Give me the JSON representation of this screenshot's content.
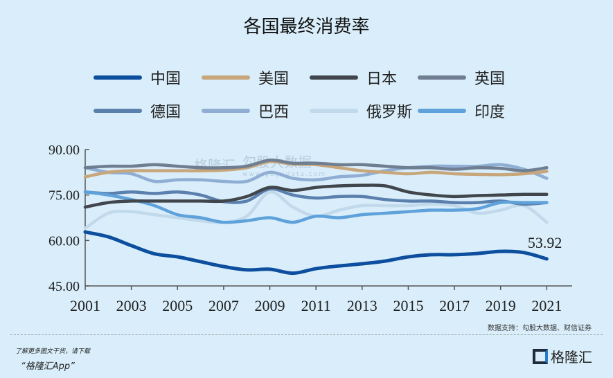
{
  "chart_data": {
    "type": "line",
    "title": "各国最终消费率",
    "x": [
      2001,
      2002,
      2003,
      2004,
      2005,
      2006,
      2007,
      2008,
      2009,
      2010,
      2011,
      2012,
      2013,
      2014,
      2015,
      2016,
      2017,
      2018,
      2019,
      2020,
      2021
    ],
    "xticks": [
      "2001",
      "2003",
      "2005",
      "2007",
      "2009",
      "2011",
      "2013",
      "2015",
      "2017",
      "2019",
      "2021"
    ],
    "yticks": [
      "45.00",
      "60.00",
      "75.00",
      "90.00"
    ],
    "ylim": [
      45,
      90
    ],
    "grid": false,
    "legend_position": "top",
    "series": [
      {
        "name": "中国",
        "color": "#0d4e9e",
        "values": [
          62.8,
          61.2,
          58.3,
          55.6,
          54.6,
          53.0,
          51.4,
          50.3,
          50.5,
          49.2,
          50.7,
          51.6,
          52.3,
          53.2,
          54.6,
          55.3,
          55.3,
          55.7,
          56.4,
          56.0,
          53.92
        ]
      },
      {
        "name": "美国",
        "color": "#c8a67c",
        "values": [
          81.0,
          82.5,
          83.0,
          83.0,
          83.0,
          83.0,
          83.2,
          84.0,
          86.0,
          85.2,
          85.0,
          84.0,
          83.0,
          82.5,
          82.0,
          82.5,
          82.0,
          81.8,
          81.7,
          82.0,
          82.8
        ]
      },
      {
        "name": "日本",
        "color": "#41464c",
        "values": [
          71.0,
          72.5,
          73.0,
          73.0,
          73.0,
          73.0,
          73.0,
          74.5,
          77.5,
          76.5,
          77.5,
          78.0,
          78.2,
          78.0,
          76.0,
          75.0,
          74.5,
          74.8,
          75.0,
          75.2,
          75.2
        ]
      },
      {
        "name": "英国",
        "color": "#6f7e90",
        "values": [
          84.0,
          84.5,
          84.5,
          85.0,
          84.5,
          84.0,
          84.0,
          84.5,
          86.5,
          85.5,
          85.5,
          85.0,
          85.0,
          84.5,
          84.0,
          84.0,
          83.5,
          84.0,
          83.8,
          83.0,
          84.0
        ]
      },
      {
        "name": "德国",
        "color": "#5b80ae",
        "values": [
          76.0,
          75.5,
          76.0,
          75.5,
          76.0,
          75.0,
          72.8,
          73.0,
          77.0,
          75.0,
          74.0,
          74.5,
          74.5,
          73.5,
          73.0,
          73.0,
          72.5,
          72.5,
          73.0,
          72.0,
          72.5
        ]
      },
      {
        "name": "巴西",
        "color": "#90aed4",
        "values": [
          84.0,
          82.5,
          82.0,
          79.5,
          80.0,
          80.0,
          79.5,
          79.5,
          82.5,
          80.5,
          80.0,
          81.0,
          81.5,
          83.0,
          84.0,
          84.5,
          84.5,
          84.5,
          85.0,
          83.5,
          80.5
        ]
      },
      {
        "name": "俄罗斯",
        "color": "#c2d9ec",
        "values": [
          64.0,
          69.0,
          69.5,
          68.5,
          67.5,
          66.5,
          66.0,
          68.0,
          76.0,
          71.0,
          68.0,
          70.0,
          71.5,
          71.5,
          71.5,
          72.0,
          71.5,
          69.0,
          70.0,
          71.5,
          66.0
        ]
      },
      {
        "name": "印度",
        "color": "#5fa2db",
        "values": [
          76.0,
          75.0,
          73.5,
          71.5,
          68.5,
          67.5,
          66.0,
          66.5,
          67.5,
          66.0,
          68.0,
          67.5,
          68.5,
          69.0,
          69.5,
          70.0,
          70.0,
          70.5,
          72.5,
          72.5,
          72.5
        ]
      }
    ],
    "annotations": [
      {
        "x": 2021,
        "series": "中国",
        "text": "53.92"
      }
    ]
  },
  "source": "数据支持：勾股大数据、财信证券",
  "watermark": {
    "brand": "格隆汇",
    "data": "勾股大数据",
    "url": "www.gogudata.com"
  },
  "footer": {
    "line1": "了解更多图文干货，请下载",
    "line2": "“格隆汇App”",
    "logo": "格隆汇"
  }
}
